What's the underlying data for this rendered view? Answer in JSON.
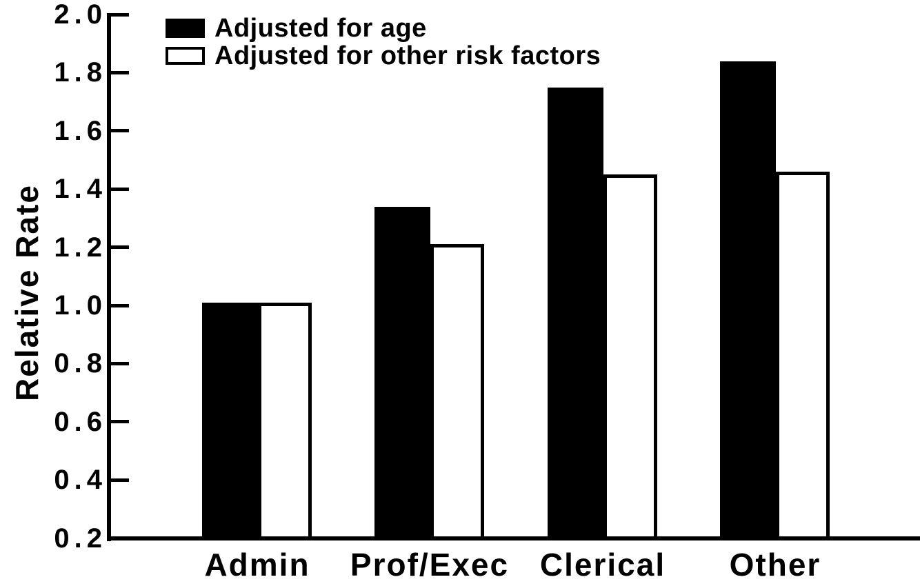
{
  "chart_data": {
    "type": "bar",
    "title": "",
    "xlabel": "",
    "ylabel": "Relative Rate",
    "categories": [
      "Admin",
      "Prof/Exec",
      "Clerical",
      "Other"
    ],
    "series": [
      {
        "name": "Adjusted for age",
        "style": "filled",
        "fill": "#000000",
        "values": [
          1.01,
          1.34,
          1.75,
          1.84
        ]
      },
      {
        "name": "Adjusted for other risk factors",
        "style": "outlined",
        "fill": "#ffffff",
        "border": "#000000",
        "values": [
          1.01,
          1.21,
          1.45,
          1.46
        ]
      }
    ],
    "y_ticks": [
      "2.0",
      "1.8",
      "1.6",
      "1.4",
      "1.2",
      "1.0",
      "0.8",
      "0.6",
      "0.4",
      "0.2"
    ],
    "ylim": [
      0.2,
      2.0
    ],
    "grid": false,
    "legend_position": "top-left",
    "colors": {
      "foreground": "#000000",
      "background": "#ffffff"
    }
  }
}
